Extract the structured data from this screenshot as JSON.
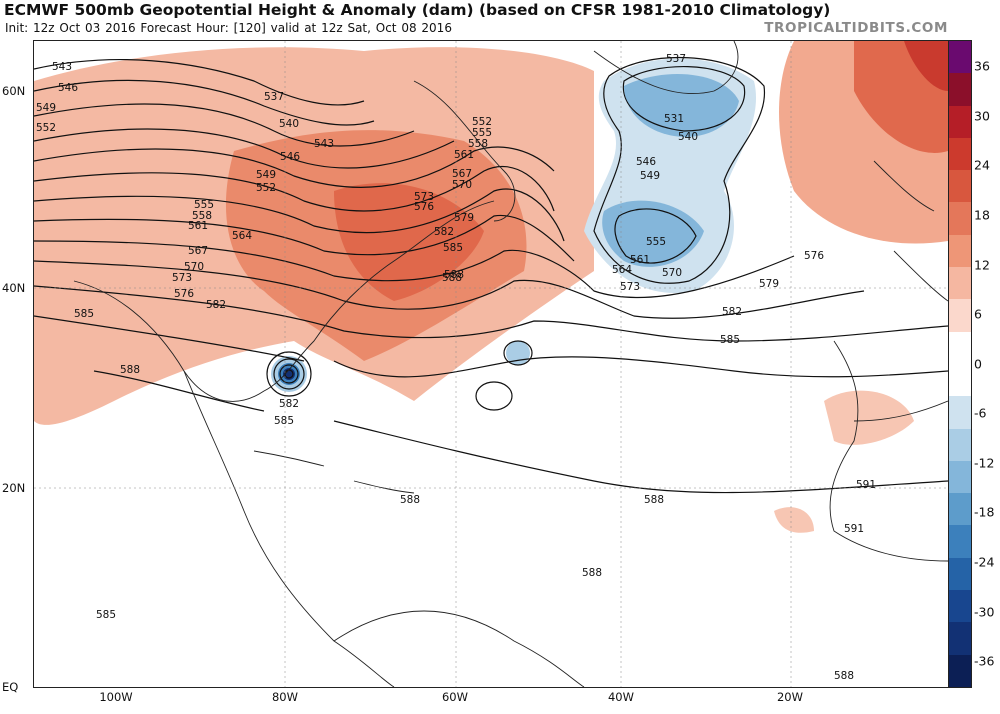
{
  "header": {
    "title": "ECMWF 500mb Geopotential Height & Anomaly (dam) (based on CFSR 1981-2010 Climatology)",
    "subtitle": "Init: 12z Oct 03 2016   Forecast Hour: [120]   valid at 12z Sat, Oct 08 2016",
    "brand": "TROPICALTIDBITS.COM"
  },
  "axes": {
    "lat_labels": [
      "60N",
      "40N",
      "20N",
      "EQ"
    ],
    "lon_labels": [
      "100W",
      "80W",
      "60W",
      "40W",
      "20W"
    ]
  },
  "colorbar": {
    "ticks": [
      "36",
      "30",
      "24",
      "18",
      "12",
      "6",
      "0",
      "-6",
      "-12",
      "-18",
      "-24",
      "-30",
      "-36"
    ],
    "colors": [
      "#6a0a6f",
      "#8b0f2a",
      "#b51e27",
      "#cc3a2d",
      "#d8573e",
      "#e4775a",
      "#ee9677",
      "#f5b7a1",
      "#fbd8cc",
      "#ffffff",
      "#ffffff",
      "#cfe2ef",
      "#aacde5",
      "#84b6da",
      "#5d9ccb",
      "#3c80bc",
      "#2563a7",
      "#18468f",
      "#123174",
      "#0c1f55"
    ]
  },
  "contours": {
    "west_labels": [
      "543",
      "546",
      "549",
      "552",
      "537",
      "540",
      "543",
      "546",
      "549",
      "552",
      "555",
      "558",
      "561",
      "564",
      "567",
      "570",
      "573",
      "576",
      "579",
      "582",
      "585",
      "588"
    ],
    "atlantic_labels": [
      "552",
      "555",
      "558",
      "561",
      "567",
      "570",
      "573",
      "576",
      "579",
      "582",
      "585",
      "588"
    ],
    "low_labels": [
      "537",
      "531",
      "540",
      "546",
      "549",
      "555",
      "561",
      "564",
      "570",
      "573",
      "576",
      "579",
      "582",
      "585"
    ],
    "hurricane_labels": [
      "582",
      "585"
    ],
    "tropical_labels": [
      "588",
      "588",
      "588",
      "585",
      "591",
      "591",
      "588",
      "588"
    ]
  }
}
